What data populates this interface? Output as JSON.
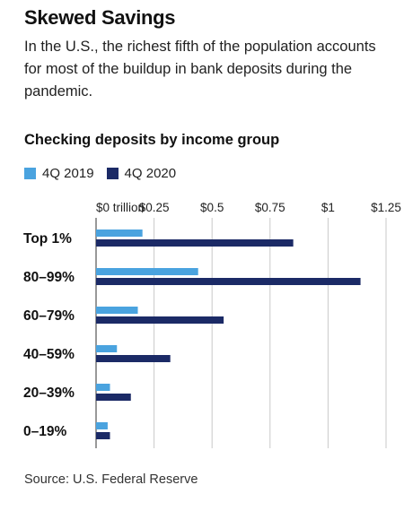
{
  "header": {
    "title": "Skewed Savings",
    "subtitle": "In the U.S., the richest fifth of the population accounts for most of the buildup in bank deposits during the pandemic."
  },
  "chart_data": {
    "type": "bar",
    "orientation": "horizontal",
    "title": "Checking deposits by income group",
    "categories": [
      "Top 1%",
      "80–99%",
      "60–79%",
      "40–59%",
      "20–39%",
      "0–19%"
    ],
    "series": [
      {
        "name": "4Q 2019",
        "color": "#4aa3df",
        "values": [
          0.2,
          0.44,
          0.18,
          0.09,
          0.06,
          0.05
        ]
      },
      {
        "name": "4Q 2020",
        "color": "#1b2a66",
        "values": [
          0.85,
          1.14,
          0.55,
          0.32,
          0.15,
          0.06
        ]
      }
    ],
    "tick_labels": [
      "$0 trillion",
      "$0.25",
      "$0.5",
      "$0.75",
      "$1",
      "$1.25"
    ],
    "tick_values": [
      0,
      0.25,
      0.5,
      0.75,
      1,
      1.25
    ],
    "xlim": [
      0,
      1.25
    ],
    "grid": true,
    "legend_position": "top-left"
  },
  "footer": {
    "source": "Source: U.S. Federal Reserve"
  }
}
